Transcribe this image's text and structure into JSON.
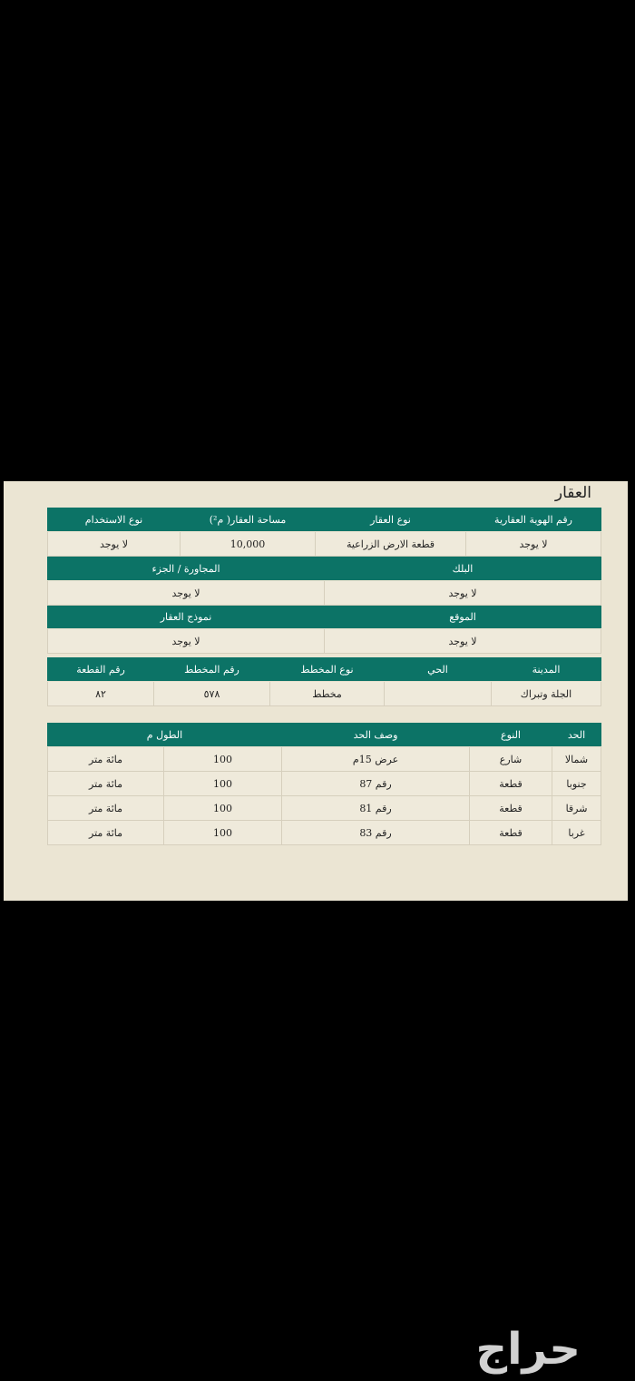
{
  "document_title": "العقار",
  "property_table": {
    "row1_headers": [
      "رقم الهوية العقارية",
      "نوع العقار",
      "مساحة العقار( م²)",
      "نوع الاستخدام"
    ],
    "row1_values": [
      "لا يوجد",
      "قطعة الارض الزراعية",
      "10,000",
      "لا يوجد"
    ],
    "row2_headers": [
      "البلك",
      "المجاورة / الجزء"
    ],
    "row2_values": [
      "لا يوجد",
      "لا يوجد"
    ],
    "row3_headers": [
      "الموقع",
      "نموذج العقار"
    ],
    "row3_values": [
      "لا يوجد",
      "لا يوجد"
    ],
    "row4_headers": [
      "المدينة",
      "الحي",
      "نوع المخطط",
      "رقم المخطط",
      "رقم القطعة"
    ],
    "row4_values": [
      "الجلة وتبراك",
      "",
      "مخطط",
      "٥٧٨",
      "٨٢"
    ]
  },
  "boundaries_table": {
    "headers": [
      "الحد",
      "النوع",
      "وصف الحد",
      "الطول م"
    ],
    "rows": [
      {
        "side": "شمالا",
        "type": "شارع",
        "description": "عرض 15م",
        "length": "100",
        "length_text": "مائة متر"
      },
      {
        "side": "جنوبا",
        "type": "قطعة",
        "description": "رقم 87",
        "length": "100",
        "length_text": "مائة متر"
      },
      {
        "side": "شرقا",
        "type": "قطعة",
        "description": "رقم 81",
        "length": "100",
        "length_text": "مائة متر"
      },
      {
        "side": "غربا",
        "type": "قطعة",
        "description": "رقم 83",
        "length": "100",
        "length_text": "مائة متر"
      }
    ]
  },
  "watermark": "حراج",
  "colors": {
    "header_bg": "#0c7366",
    "paper": "#ebe5d3"
  }
}
